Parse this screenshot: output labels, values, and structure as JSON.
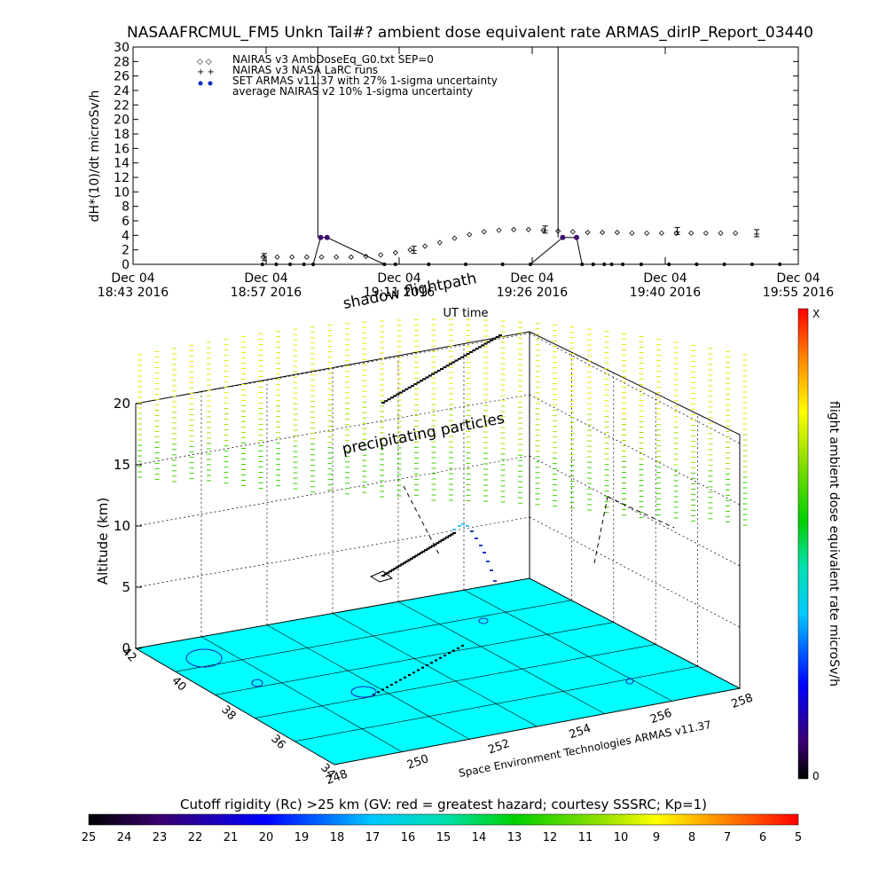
{
  "chart_data": [
    {
      "type": "line",
      "title": "NASAAFRCMUL_FM5 Unkn Tail#? ambient dose equivalent rate ARMAS_dirIP_Report_03440",
      "ylabel": "dH*(10)/dt microSv/h",
      "xlabel": "UT time",
      "ylim": [
        0,
        30
      ],
      "yticks": [
        "0",
        "2",
        "4",
        "6",
        "8",
        "10",
        "12",
        "14",
        "16",
        "18",
        "20",
        "22",
        "24",
        "26",
        "28",
        "30"
      ],
      "xticks": [
        {
          "line1": "Dec 04",
          "line2": "18:43 2016"
        },
        {
          "line1": "Dec 04",
          "line2": "18:57 2016"
        },
        {
          "line1": "Dec 04",
          "line2": "19:11 2016"
        },
        {
          "line1": "Dec 04",
          "line2": "19:26 2016"
        },
        {
          "line1": "Dec 04",
          "line2": "19:40 2016"
        },
        {
          "line1": "Dec 04",
          "line2": "19:55 2016"
        }
      ],
      "xlim_minutes": [
        0,
        72
      ],
      "legend_position": "top-left",
      "series": [
        {
          "name": "NAIRAS v3 AmbDoseEq_G0.txt SEP=0",
          "marker": "diamond",
          "x": [
            14.1,
            15.6,
            17.2,
            18.8,
            20.4,
            22.0,
            23.6,
            25.2,
            26.8,
            28.4,
            30.0,
            31.6,
            33.2,
            34.8,
            36.4,
            38.0,
            39.6,
            41.2,
            42.8,
            44.4,
            46.0,
            47.6,
            49.2,
            50.8,
            52.4,
            54.0,
            55.6,
            57.2,
            58.8,
            60.4,
            62.0,
            63.6,
            65.2
          ],
          "values": [
            1.0,
            1.0,
            1.0,
            1.0,
            1.0,
            1.0,
            1.0,
            1.1,
            1.3,
            1.6,
            2.0,
            2.5,
            3.0,
            3.6,
            4.1,
            4.5,
            4.7,
            4.8,
            4.8,
            4.7,
            4.6,
            4.5,
            4.4,
            4.4,
            4.4,
            4.3,
            4.3,
            4.3,
            4.3,
            4.3,
            4.3,
            4.3,
            4.3
          ]
        },
        {
          "name": "NAIRAS v3 NASA LaRC runs",
          "marker": "plus",
          "x": [
            14.2,
            30.4,
            44.6,
            58.9,
            67.5
          ],
          "values": [
            1.2,
            2.0,
            4.8,
            4.6,
            4.3
          ]
        },
        {
          "name": "SET ARMAS v11.37 with 27% 1-sigma uncertainty",
          "marker": "dot",
          "x": [
            14.0,
            15.5,
            17.0,
            18.5,
            19.5,
            20.3,
            21.0,
            27.2,
            28.4,
            32.0,
            36.0,
            40.0,
            43.0,
            46.5,
            48.0,
            48.6,
            49.8,
            51.0,
            51.8,
            53.0,
            55.0,
            58.0,
            61.0,
            64.0,
            67.0,
            70.0
          ],
          "values": [
            0,
            0,
            0,
            0,
            0,
            3.7,
            3.7,
            0,
            0,
            0,
            0,
            0,
            0,
            3.7,
            3.7,
            0,
            0,
            0,
            0,
            0,
            0,
            0,
            0,
            0,
            0,
            0
          ],
          "spikes": [
            {
              "x": 20.0,
              "value": 30
            },
            {
              "x": 46.0,
              "value": 30
            }
          ]
        },
        {
          "name": "average NAIRAS v2 10% 1-sigma uncertainty",
          "marker": "errorbar",
          "x": [
            14.2,
            30.4,
            44.6,
            58.9,
            67.5
          ],
          "values": [
            1.0,
            2.0,
            4.8,
            4.6,
            4.3
          ]
        }
      ]
    },
    {
      "type": "scatter",
      "subtype": "3d-flight-track",
      "zlabel": "Altitude (km)",
      "zticks": [
        "0",
        "5",
        "10",
        "15",
        "20"
      ],
      "zlim": [
        0,
        22
      ],
      "yticks_lat": [
        "34",
        "36",
        "38",
        "40",
        "42"
      ],
      "xticks_lon": [
        "248",
        "250",
        "252",
        "254",
        "256",
        "258"
      ],
      "annotations": [
        "shadow flightpath",
        "precipitating particles"
      ],
      "credit": "Space Environment Technologies ARMAS v11.37",
      "colorbar": {
        "label": "flight ambient dose equivalent rate microSv/h",
        "top_label": "X",
        "bottom_label": "0"
      },
      "ground_color": "#00ffff"
    },
    {
      "type": "heatmap",
      "subtype": "colorbar",
      "title": "Cutoff rigidity (Rc) >25 km (GV: red = greatest hazard; courtesy SSSRC; Kp=1)",
      "ticks": [
        "25",
        "24",
        "23",
        "22",
        "21",
        "20",
        "19",
        "18",
        "17",
        "16",
        "15",
        "14",
        "13",
        "12",
        "11",
        "10",
        "9",
        "8",
        "7",
        "6",
        "5"
      ]
    }
  ]
}
